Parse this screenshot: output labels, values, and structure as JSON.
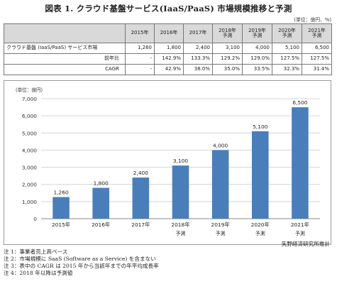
{
  "title": "図表 1. クラウド基盤サービス(IaaS/PaaS) 市場規模推移と予測",
  "unit_note": "(単位：億円、%)",
  "table": {
    "headers": [
      {
        "year": "2015年",
        "tag": ""
      },
      {
        "year": "2016年",
        "tag": ""
      },
      {
        "year": "2017年",
        "tag": ""
      },
      {
        "year": "2018年",
        "tag": "予測"
      },
      {
        "year": "2019年",
        "tag": "予測"
      },
      {
        "year": "2020年",
        "tag": "予測"
      },
      {
        "year": "2021年",
        "tag": "予測"
      }
    ],
    "rows": [
      {
        "label": "クラウド基盤 (IaaS/PaaS) サービス市場",
        "cells": [
          "1,260",
          "1,800",
          "2,400",
          "3,100",
          "4,000",
          "5,100",
          "6,500"
        ]
      },
      {
        "label": "前年比",
        "cells": [
          "-",
          "142.9%",
          "133.3%",
          "129.2%",
          "129.0%",
          "127.5%",
          "127.5%"
        ]
      },
      {
        "label": "CAGR",
        "cells": [
          "-",
          "42.9%",
          "38.0%",
          "35.0%",
          "33.5%",
          "32.3%",
          "31.4%"
        ]
      }
    ]
  },
  "chart_data": {
    "type": "bar",
    "unit_label": "(単位：億円)",
    "categories": [
      "2015年",
      "2016年",
      "2017年",
      "2018年",
      "2019年",
      "2020年",
      "2021年"
    ],
    "forecast_tags": [
      "",
      "",
      "",
      "予測",
      "予測",
      "予測",
      "予測"
    ],
    "values": [
      1260,
      1800,
      2400,
      3100,
      4000,
      5100,
      6500
    ],
    "value_labels": [
      "1,260",
      "1,800",
      "2,400",
      "3,100",
      "4,000",
      "5,100",
      "6,500"
    ],
    "ylim": [
      0,
      7000
    ],
    "yticks": [
      0,
      1000,
      2000,
      3000,
      4000,
      5000,
      6000,
      7000
    ],
    "ytick_labels": [
      "0",
      "1,000",
      "2,000",
      "3,000",
      "4,000",
      "5,000",
      "6,000",
      "7,000"
    ],
    "grid": true,
    "bar_color": "#4a7ebb",
    "title": "",
    "xlabel": "",
    "ylabel": ""
  },
  "credit": "矢野経済研究所推計",
  "notes": [
    "注 1：事業者売上高ベース",
    "注 2：市場規模に SaaS (Software as a Service) を含まない",
    "注 3：表中の CAGR は 2015 年から当該年までの年平均成長率",
    "注 4：2018 年以降は予測値"
  ]
}
